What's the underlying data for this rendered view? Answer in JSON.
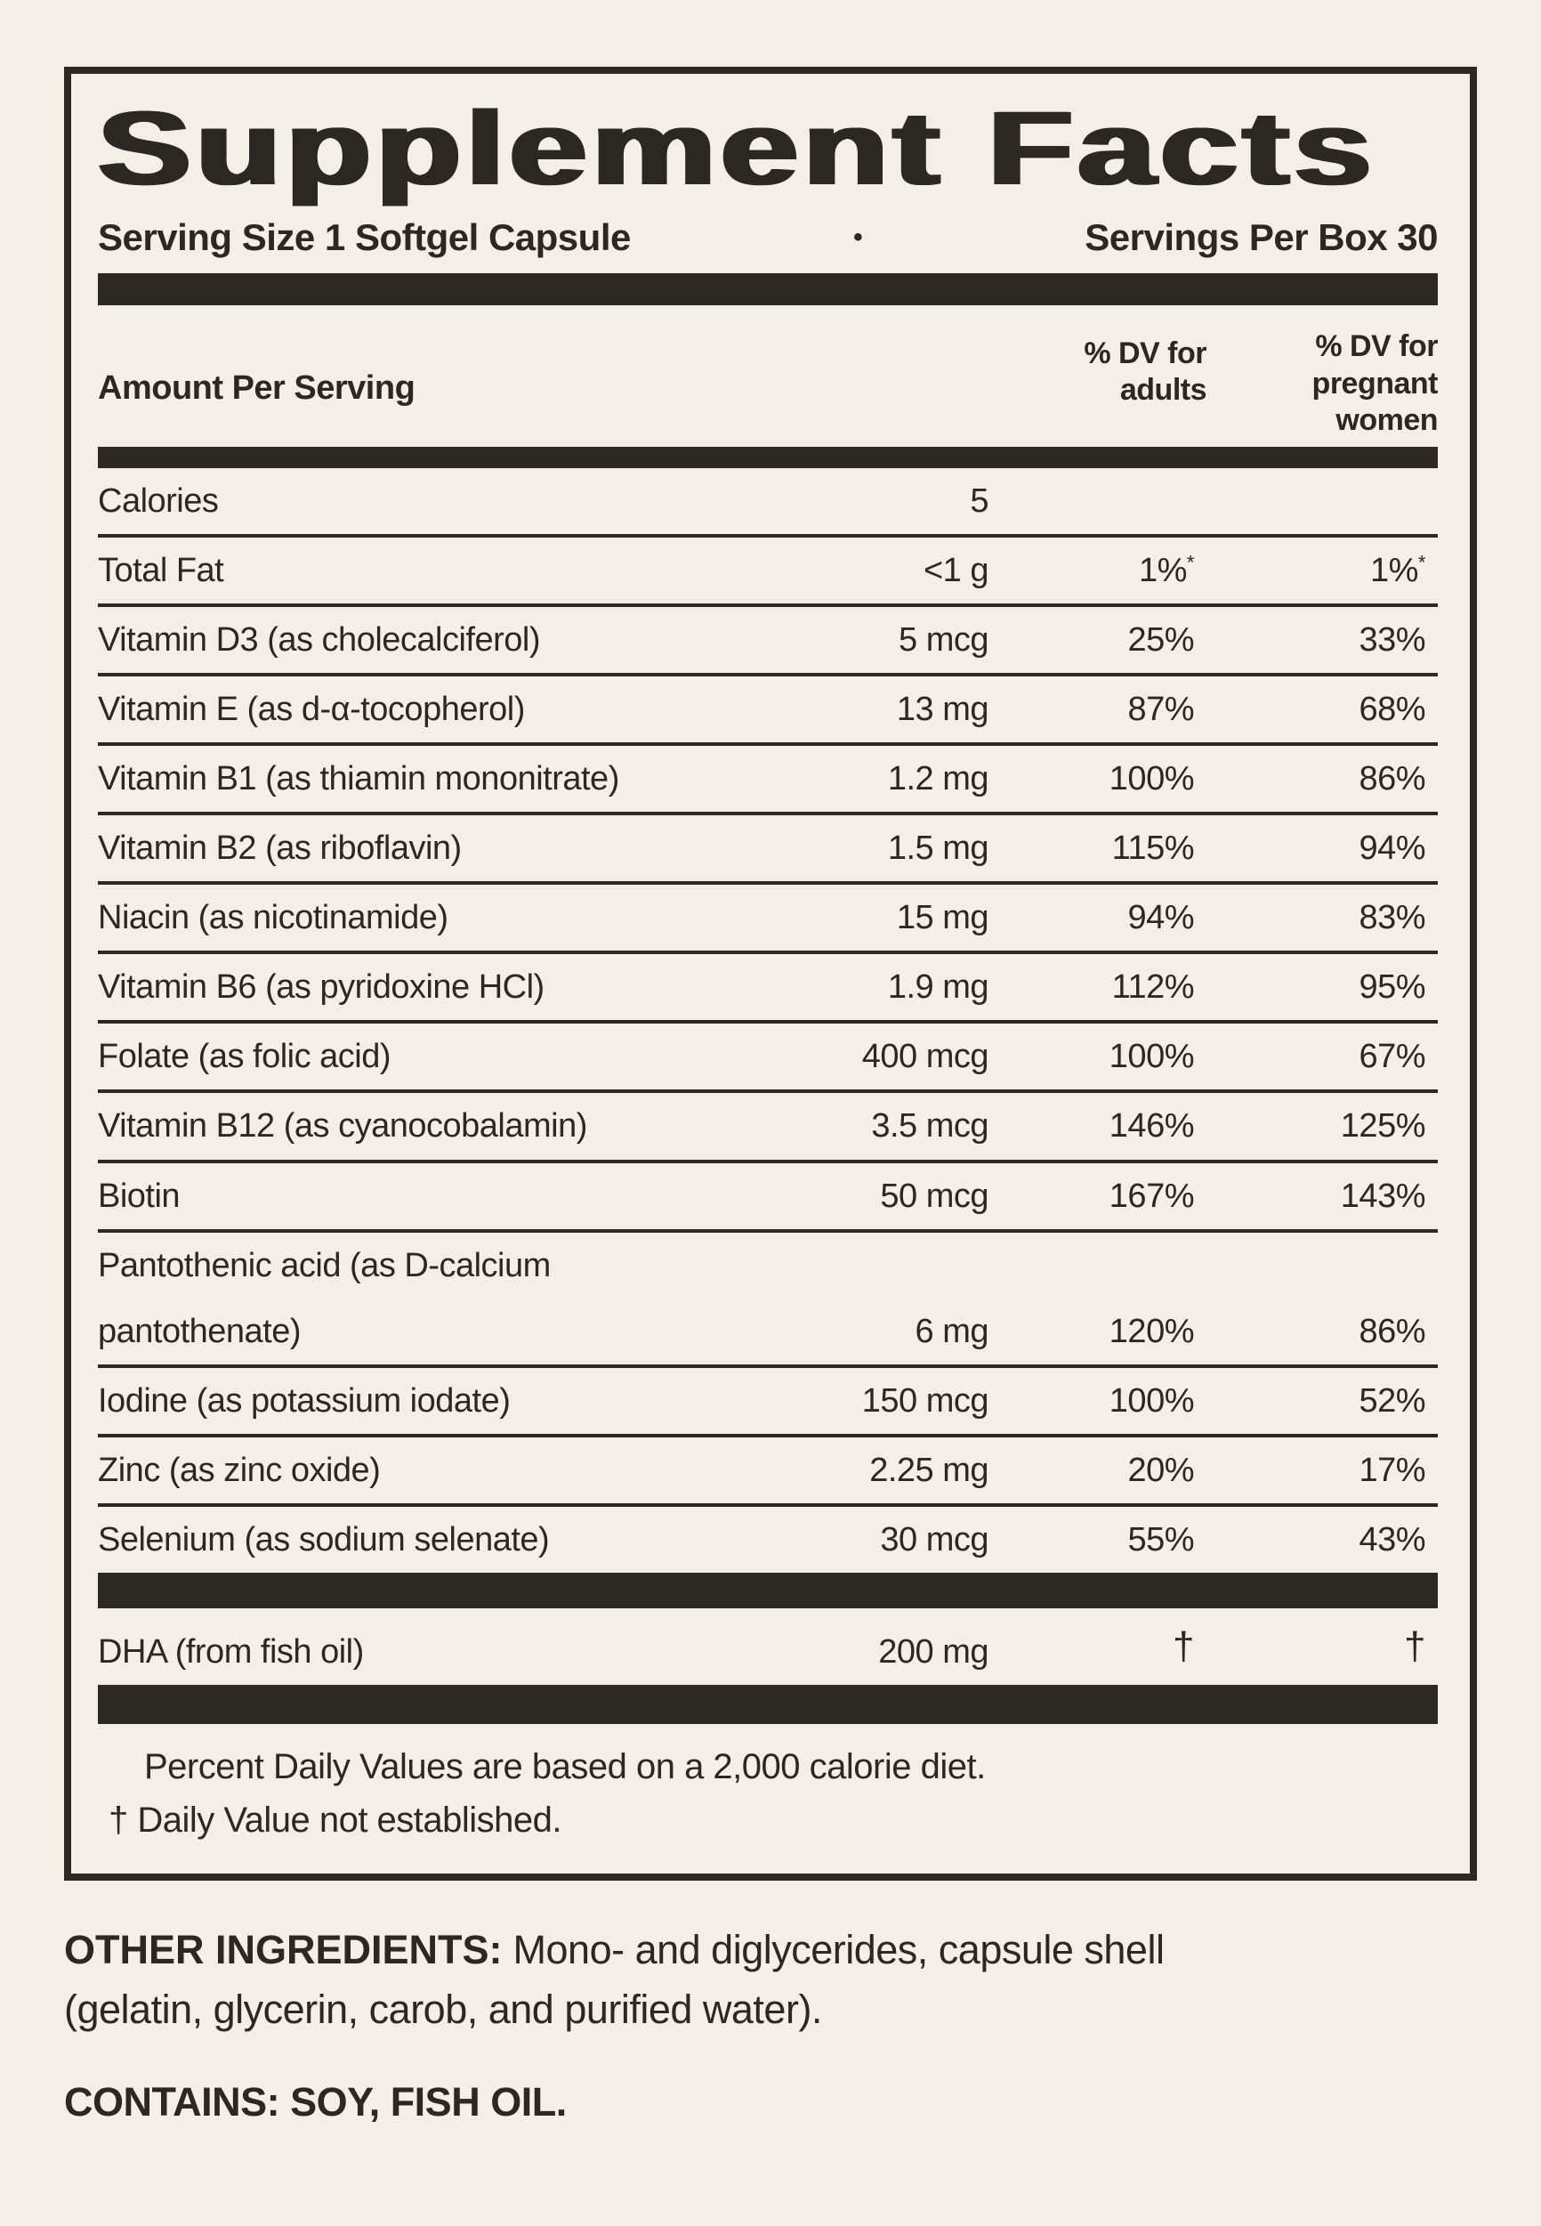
{
  "colors": {
    "background": "#f3eee8",
    "ink": "#2b2823"
  },
  "panel": {
    "title": "Supplement Facts",
    "serving_size": "Serving Size 1 Softgel Capsule",
    "bullet": "•",
    "servings_per_box": "Servings Per Box 30",
    "header": {
      "amount": "Amount Per Serving",
      "dv_adults": "% DV for\nadults",
      "dv_pregnant": "% DV for\npregnant\nwomen"
    }
  },
  "table": {
    "rows": [
      {
        "name": "Calories",
        "amount": "5",
        "adult": "",
        "pregnant": ""
      },
      {
        "name": "Total Fat",
        "amount": "<1 g",
        "adult": "1%",
        "adult_sup": "*",
        "pregnant": "1%",
        "pregnant_sup": "*"
      },
      {
        "name": "Vitamin D3 (as cholecalciferol)",
        "amount": "5 mcg",
        "adult": "25%",
        "pregnant": "33%"
      },
      {
        "name": "Vitamin E (as d-α-tocopherol)",
        "amount": "13 mg",
        "adult": "87%",
        "pregnant": "68%"
      },
      {
        "name": "Vitamin B1 (as thiamin mononitrate)",
        "amount": "1.2 mg",
        "adult": "100%",
        "pregnant": "86%"
      },
      {
        "name": "Vitamin B2 (as riboflavin)",
        "amount": "1.5 mg",
        "adult": "115%",
        "pregnant": "94%"
      },
      {
        "name": "Niacin (as nicotinamide)",
        "amount": "15 mg",
        "adult": "94%",
        "pregnant": "83%"
      },
      {
        "name": "Vitamin B6 (as pyridoxine HCl)",
        "amount": "1.9 mg",
        "adult": "112%",
        "pregnant": "95%"
      },
      {
        "name": "Folate (as folic acid)",
        "amount": "400 mcg",
        "adult": "100%",
        "pregnant": "67%"
      },
      {
        "name": "Vitamin B12 (as cyanocobalamin)",
        "amount": "3.5 mcg",
        "adult": "146%",
        "pregnant": "125%"
      },
      {
        "name": "Biotin",
        "amount": "50 mcg",
        "adult": "167%",
        "pregnant": "143%"
      },
      {
        "name": "Pantothenic acid (as D-calcium pantothenate)",
        "amount": "6 mg",
        "adult": "120%",
        "pregnant": "86%"
      },
      {
        "name": "Iodine (as potassium iodate)",
        "amount": "150 mcg",
        "adult": "100%",
        "pregnant": "52%"
      },
      {
        "name": "Zinc (as zinc oxide)",
        "amount": "2.25 mg",
        "adult": "20%",
        "pregnant": "17%"
      },
      {
        "name": "Selenium (as sodium selenate)",
        "amount": "30 mcg",
        "adult": "55%",
        "pregnant": "43%"
      }
    ],
    "dha": {
      "name": "DHA (from fish oil)",
      "amount": "200 mg",
      "adult": "†",
      "pregnant": "†"
    }
  },
  "footnotes": {
    "dv": "Percent Daily Values are based on a 2,000 calorie diet.",
    "dagger": "† Daily Value not established."
  },
  "other": {
    "label": "OTHER INGREDIENTS:",
    "line1": "Mono- and diglycerides, capsule shell",
    "line2": "(gelatin, glycerin, carob, and purified water).",
    "contains": "CONTAINS: SOY, FISH OIL."
  }
}
